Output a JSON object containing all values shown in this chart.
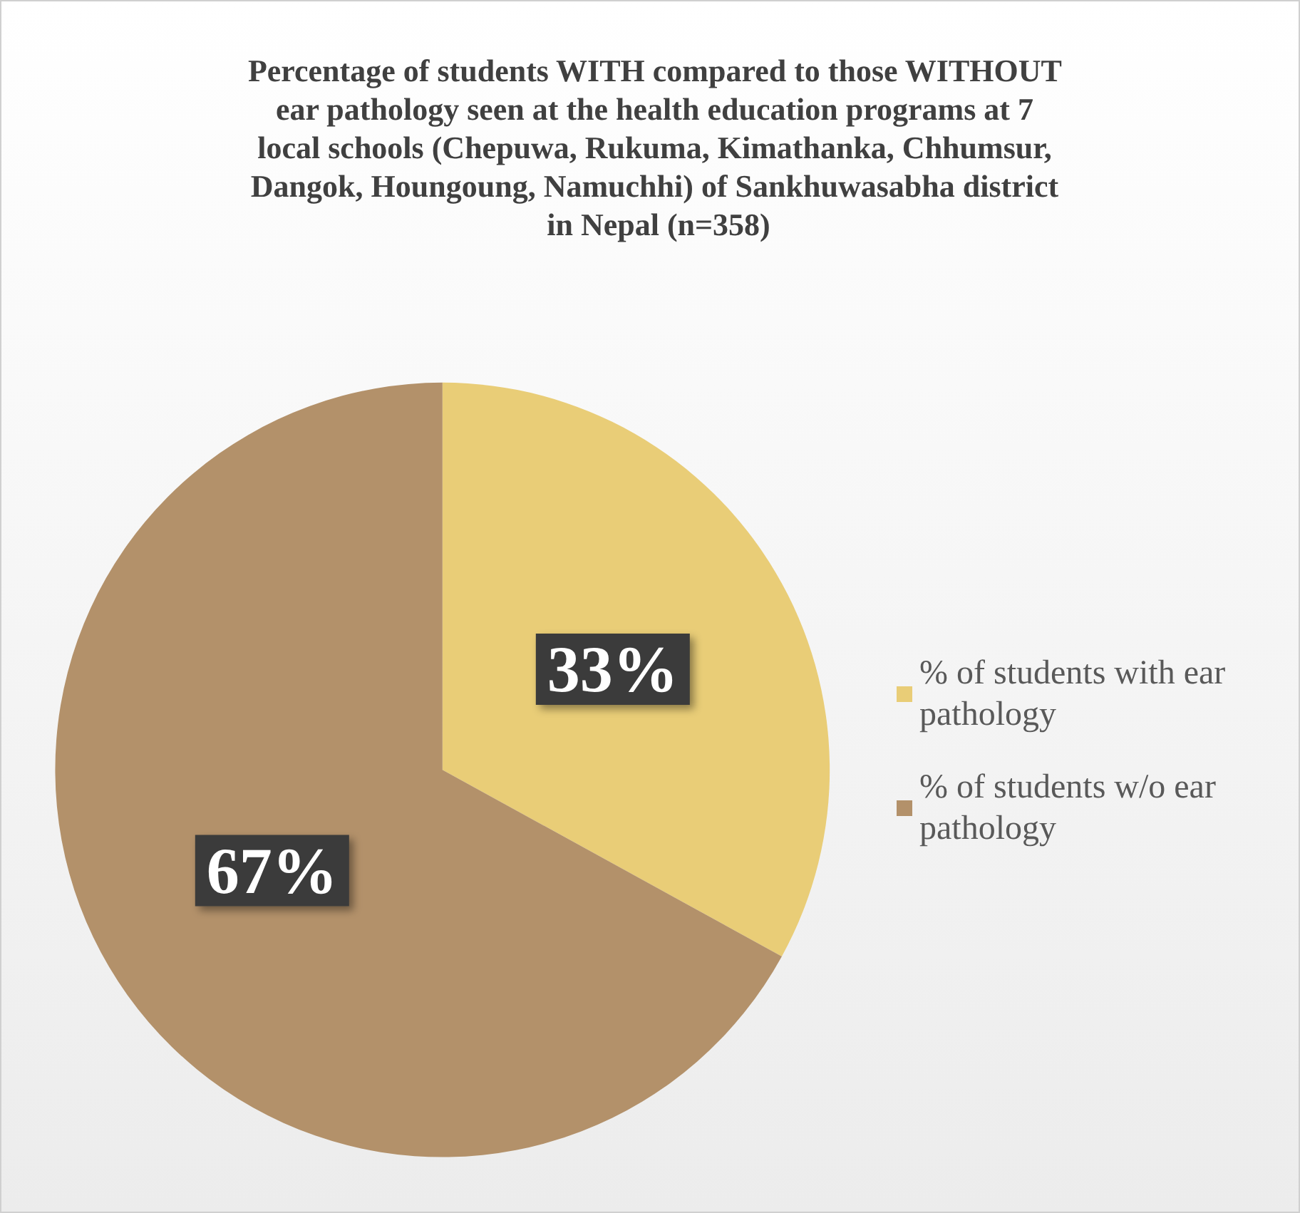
{
  "chart_data": {
    "type": "pie",
    "title": "Percentage of students WITH compared to those WITHOUT ear pathology seen at the health education programs at 7 local schools (Chepuwa, Rukuma, Kimathanka, Chhumsur, Dangok, Houngoung, Namuchhi) of Sankhuwasabha district in Nepal (n=358)",
    "categories": [
      "% of students with ear pathology",
      "% of students w/o ear pathology"
    ],
    "values": [
      33,
      67
    ],
    "colors": [
      "#e9cd77",
      "#b3916a"
    ],
    "value_labels": [
      "33%",
      "67%"
    ],
    "legend": "right"
  }
}
